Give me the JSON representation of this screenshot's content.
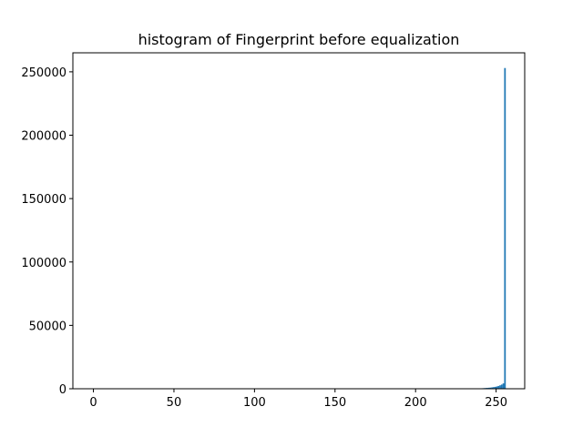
{
  "chart_data": {
    "type": "bar",
    "title": "histogram of Fingerprint before equalization",
    "xlabel": "",
    "ylabel": "",
    "xlim": [
      -12.75,
      267.75
    ],
    "ylim": [
      0,
      265000
    ],
    "grid": false,
    "bar_color": "#1f77b4",
    "x_ticks": [
      0,
      50,
      100,
      150,
      200,
      250
    ],
    "y_ticks": [
      0,
      50000,
      100000,
      150000,
      200000,
      250000
    ],
    "bins": {
      "x": [
        240,
        241,
        242,
        243,
        244,
        245,
        246,
        247,
        248,
        249,
        250,
        251,
        252,
        253,
        254,
        255
      ],
      "values": [
        300,
        400,
        500,
        600,
        700,
        800,
        900,
        1100,
        1300,
        1500,
        1800,
        2200,
        2700,
        3300,
        4200,
        253000
      ]
    }
  }
}
